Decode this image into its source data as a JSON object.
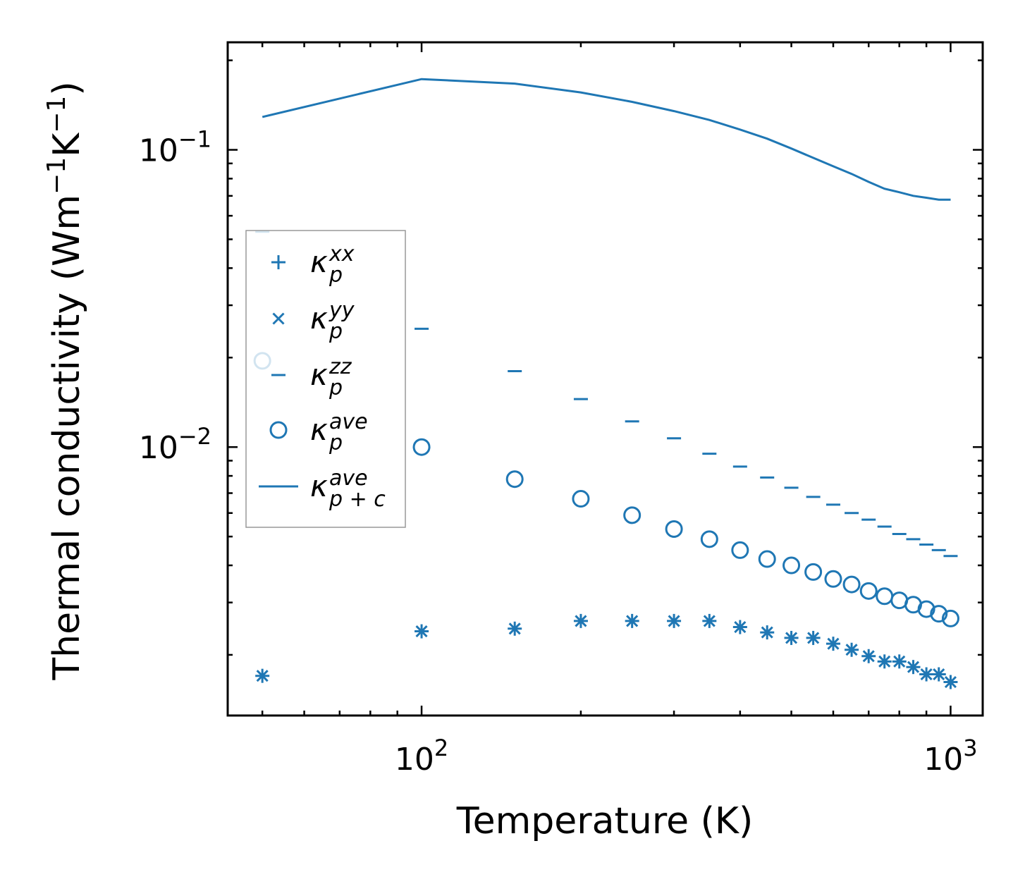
{
  "chart_data": {
    "type": "scatter",
    "scale": "log-log",
    "xlabel": "Temperature (K)",
    "ylabel": "Thermal conductivity (Wm",
    "ylabel_sup1": "−1",
    "ylabel_mid": "K",
    "ylabel_sup2": "−1",
    "ylabel_end": ")",
    "xlim": [
      43,
      1150
    ],
    "ylim": [
      0.00125,
      0.23
    ],
    "x_major_ticks": [
      {
        "value": 100,
        "base": "10",
        "exp": "2"
      },
      {
        "value": 1000,
        "base": "10",
        "exp": "3"
      }
    ],
    "y_major_ticks": [
      {
        "value": 0.01,
        "base": "10",
        "exp": "−2"
      },
      {
        "value": 0.1,
        "base": "10",
        "exp": "−1"
      }
    ],
    "color": "#1f77b4",
    "x": [
      50,
      100,
      150,
      200,
      250,
      300,
      350,
      400,
      450,
      500,
      550,
      600,
      650,
      700,
      750,
      800,
      850,
      900,
      950,
      1000
    ],
    "series": [
      {
        "name": "kappa_p_xx",
        "marker": "plus",
        "values": [
          0.0017,
          0.0024,
          0.00245,
          0.0026,
          0.0026,
          0.0026,
          0.0026,
          0.00248,
          0.00238,
          0.00228,
          0.00228,
          0.00218,
          0.00208,
          0.00198,
          0.0019,
          0.0019,
          0.00182,
          0.00172,
          0.00172,
          0.00162
        ]
      },
      {
        "name": "kappa_p_yy",
        "marker": "x",
        "values": [
          0.0017,
          0.0024,
          0.00245,
          0.0026,
          0.0026,
          0.0026,
          0.0026,
          0.00248,
          0.00238,
          0.00228,
          0.00228,
          0.00218,
          0.00208,
          0.00198,
          0.0019,
          0.0019,
          0.00182,
          0.00172,
          0.00172,
          0.00162
        ]
      },
      {
        "name": "kappa_p_zz",
        "marker": "hline",
        "values": [
          0.053,
          0.025,
          0.018,
          0.0145,
          0.0122,
          0.0107,
          0.0095,
          0.0086,
          0.0079,
          0.0073,
          0.0068,
          0.0064,
          0.006,
          0.0057,
          0.0054,
          0.0051,
          0.0049,
          0.0047,
          0.0045,
          0.0043
        ]
      },
      {
        "name": "kappa_p_ave",
        "marker": "circle",
        "values": [
          0.0195,
          0.01,
          0.0078,
          0.0067,
          0.0059,
          0.0053,
          0.0049,
          0.0045,
          0.0042,
          0.004,
          0.0038,
          0.0036,
          0.00345,
          0.00328,
          0.00315,
          0.00305,
          0.00295,
          0.00285,
          0.00275,
          0.00265
        ]
      },
      {
        "name": "kappa_pc_ave",
        "marker": "line",
        "values": [
          0.129,
          0.173,
          0.167,
          0.156,
          0.145,
          0.135,
          0.126,
          0.117,
          0.109,
          0.101,
          0.094,
          0.088,
          0.083,
          0.078,
          0.074,
          0.072,
          0.07,
          0.069,
          0.068,
          0.068
        ]
      }
    ],
    "legend": {
      "position": "center-left",
      "entries": [
        {
          "marker": "plus",
          "base": "κ",
          "sup": "xx",
          "sub": "p"
        },
        {
          "marker": "x",
          "base": "κ",
          "sup": "yy",
          "sub": "p"
        },
        {
          "marker": "hline",
          "base": "κ",
          "sup": "zz",
          "sub": "p"
        },
        {
          "marker": "circle",
          "base": "κ",
          "sup": "ave",
          "sub": "p"
        },
        {
          "marker": "line",
          "base": "κ",
          "sup": "ave",
          "sub": "p + c"
        }
      ]
    }
  }
}
